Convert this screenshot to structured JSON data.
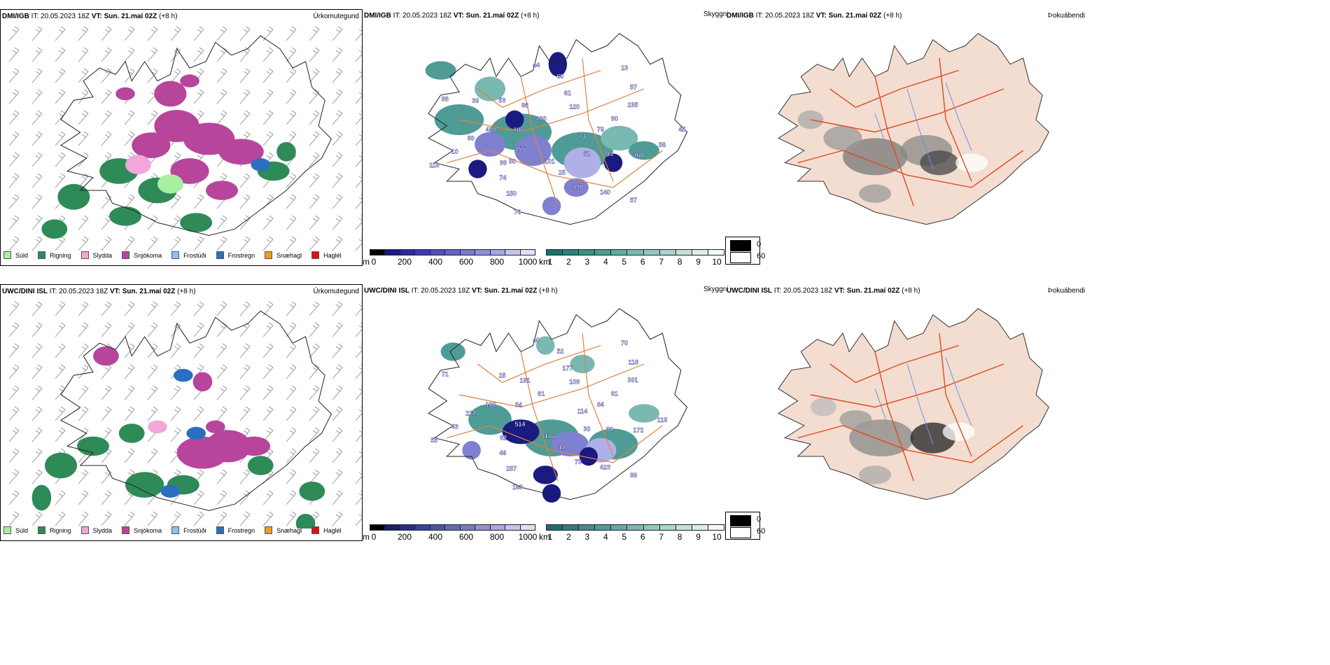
{
  "rows": [
    {
      "precip": {
        "model": "DMI/IGB",
        "it": "IT: 20.05.2023 18Z",
        "vt": "VT: Sun. 21.maí 02Z",
        "lead": "(+8 h)",
        "label": "Úrkomutegund"
      },
      "vis": {
        "model": "DMI/IGB",
        "it": "IT: 20.05.2023 18Z",
        "vt": "VT: Sun. 21.maí 02Z",
        "lead": "(+8 h)",
        "label": "Skyggni"
      },
      "fog": {
        "model": "DMI/IGB",
        "it": "IT: 20.05.2023 18Z",
        "vt": "VT: Sun. 21.maí 02Z",
        "lead": "(+8 h)",
        "label": "Þokuábendi"
      },
      "vis_labels": [
        "73",
        "99",
        "60",
        "57",
        "400",
        "235",
        "70",
        "86",
        "168",
        "118",
        "120",
        "148",
        "88",
        "79",
        "74",
        "44",
        "52",
        "80",
        "57",
        "101",
        "53",
        "56",
        "155",
        "61",
        "140",
        "107",
        "90",
        "150",
        "200",
        "94",
        "10",
        "13",
        "25",
        "39",
        "45",
        "50"
      ]
    },
    {
      "precip": {
        "model": "UWC/DINI ISL",
        "it": "IT: 20.05.2023 18Z",
        "vt": "VT: Sun. 21.maí 02Z",
        "lead": "(+8 h)",
        "label": "Úrkomutegund"
      },
      "vis": {
        "model": "UWC/DINI ISL",
        "it": "IT: 20.05.2023 18Z",
        "vt": "VT: Sun. 21.maí 02Z",
        "lead": "(+8 h)",
        "label": "Skyggni"
      },
      "fog": {
        "model": "UWC/DINI ISL",
        "it": "IT: 20.05.2023 18Z",
        "vt": "VT: Sun. 21.maí 02Z",
        "lead": "(+8 h)",
        "label": "Þokuábendi"
      },
      "vis_labels": [
        "114",
        "92",
        "52",
        "89",
        "102",
        "301",
        "163",
        "191",
        "172",
        "55",
        "109",
        "73",
        "71",
        "84",
        "46",
        "40",
        "30",
        "212",
        "118",
        "176",
        "25",
        "118",
        "514",
        "177",
        "423",
        "54",
        "81",
        "257",
        "61",
        "82",
        "43",
        "70",
        "12"
      ]
    }
  ],
  "precip_legend": [
    {
      "label": "Súld",
      "color": "#a6f0a0"
    },
    {
      "label": "Rigning",
      "color": "#2e8b57"
    },
    {
      "label": "Slydda",
      "color": "#f2a6d9"
    },
    {
      "label": "Snjókoma",
      "color": "#b8459c"
    },
    {
      "label": "Frostúði",
      "color": "#8ec0f0"
    },
    {
      "label": "Frostregn",
      "color": "#2a6fc0"
    },
    {
      "label": "Snæhagl",
      "color": "#f29b1e"
    },
    {
      "label": "Haglél",
      "color": "#e01010"
    }
  ],
  "cloud_base_bar": {
    "unit": "m",
    "ticks": [
      "0",
      "200",
      "400",
      "600",
      "800",
      "1000"
    ],
    "colors": [
      "#000000",
      "#1a1a80",
      "#2a2a9a",
      "#3c3cae",
      "#5050b8",
      "#6666c2",
      "#7a7acc",
      "#9090d6",
      "#a8a8e0",
      "#c4c4ec",
      "#e0e0f6"
    ]
  },
  "visibility_bar": {
    "unit": "km",
    "ticks": [
      "1",
      "2",
      "3",
      "4",
      "5",
      "6",
      "7",
      "8",
      "9",
      "10"
    ],
    "colors": [
      "#1e6e6e",
      "#2e7e7a",
      "#3e8e88",
      "#4f9c96",
      "#64aaa4",
      "#7ab8b2",
      "#92c6c0",
      "#aad4ce",
      "#c2e2dc",
      "#dceeea",
      "#f4faf8"
    ]
  },
  "fog_key": {
    "values": [
      "0",
      "60"
    ]
  }
}
